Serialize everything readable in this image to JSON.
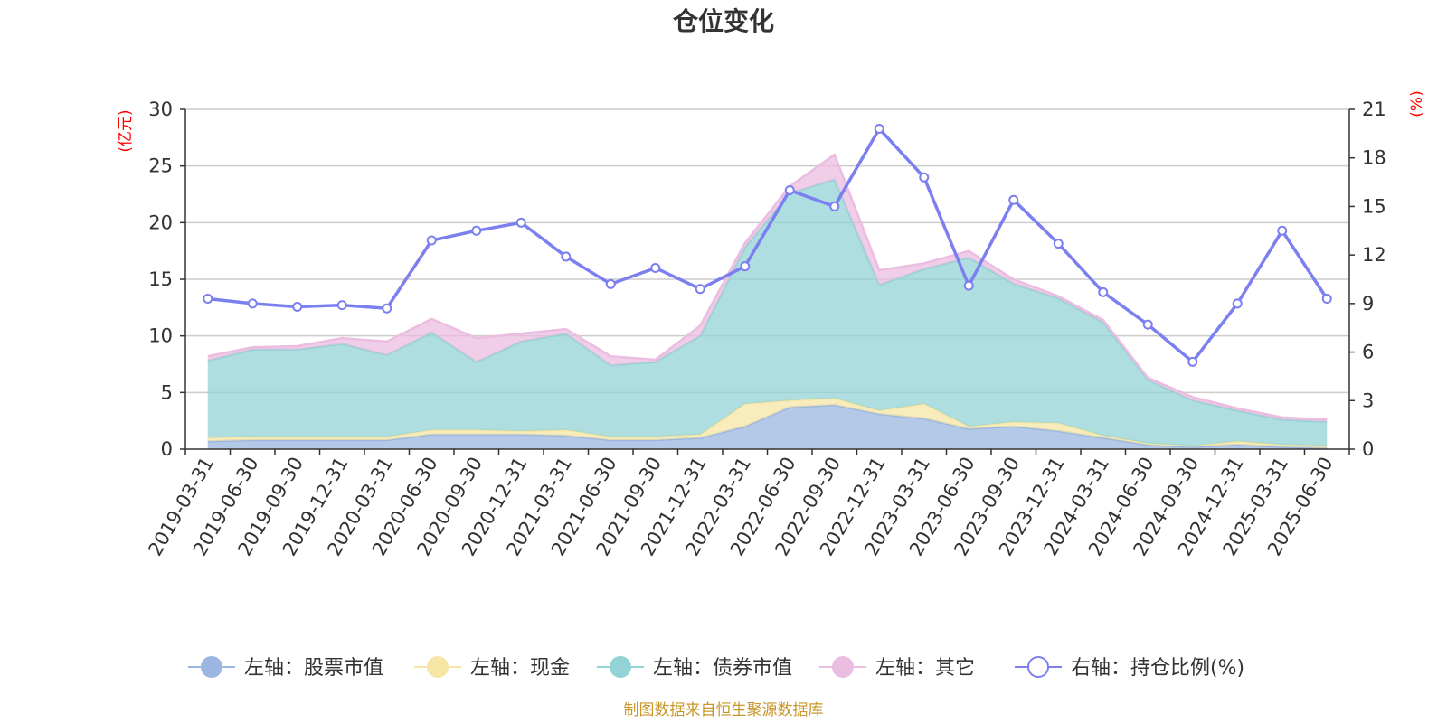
{
  "chart_data": {
    "type": "area",
    "title": "仓位变化",
    "y_left_unit": "(亿元)",
    "y_right_unit": "(%)",
    "x": [
      "2019-03-31",
      "2019-06-30",
      "2019-09-30",
      "2019-12-31",
      "2020-03-31",
      "2020-06-30",
      "2020-09-30",
      "2020-12-31",
      "2021-03-31",
      "2021-06-30",
      "2021-09-30",
      "2021-12-31",
      "2022-03-31",
      "2022-06-30",
      "2022-09-30",
      "2022-12-31",
      "2023-03-31",
      "2023-06-30",
      "2023-09-30",
      "2023-12-31",
      "2024-03-31",
      "2024-06-30",
      "2024-09-30",
      "2024-12-31",
      "2025-03-31",
      "2025-06-30"
    ],
    "y_left_ticks": [
      "0",
      "5",
      "10",
      "15",
      "20",
      "25",
      "30"
    ],
    "y_right_ticks": [
      "0",
      "3",
      "6",
      "9",
      "12",
      "15",
      "18",
      "21"
    ],
    "ylim_left": [
      0,
      30
    ],
    "ylim_right": [
      0,
      21
    ],
    "grid": true,
    "legend_position": "bottom",
    "series": [
      {
        "name": "左轴：股票市值",
        "axis": "left",
        "color": "#9bb6e0",
        "values": [
          0.7,
          0.8,
          0.8,
          0.8,
          0.8,
          1.3,
          1.3,
          1.3,
          1.2,
          0.8,
          0.8,
          1.0,
          2.0,
          3.7,
          3.9,
          3.1,
          2.7,
          1.8,
          2.0,
          1.6,
          1.0,
          0.4,
          0.2,
          0.4,
          0.2,
          0.1
        ]
      },
      {
        "name": "左轴：现金",
        "axis": "left",
        "color": "#f5e6a6",
        "values": [
          0.3,
          0.3,
          0.3,
          0.3,
          0.3,
          0.4,
          0.4,
          0.3,
          0.5,
          0.3,
          0.3,
          0.3,
          2.0,
          0.6,
          0.6,
          0.3,
          1.3,
          0.2,
          0.4,
          0.7,
          0.2,
          0.1,
          0.1,
          0.3,
          0.2,
          0.2
        ]
      },
      {
        "name": "左轴：债券市值",
        "axis": "left",
        "color": "#93d3d6",
        "values": [
          6.8,
          7.7,
          7.7,
          8.2,
          7.2,
          8.6,
          6.0,
          7.9,
          8.5,
          6.3,
          6.6,
          8.7,
          13.8,
          18.3,
          19.3,
          11.1,
          11.9,
          14.9,
          12.2,
          11.0,
          10.0,
          5.6,
          4.0,
          2.7,
          2.2,
          2.1
        ]
      },
      {
        "name": "左轴：其它",
        "axis": "left",
        "color": "#ebbde0",
        "values": [
          0.4,
          0.2,
          0.3,
          0.5,
          1.2,
          1.2,
          2.1,
          0.7,
          0.4,
          0.8,
          0.2,
          0.9,
          0.4,
          0.6,
          2.2,
          1.3,
          0.5,
          0.6,
          0.4,
          0.2,
          0.2,
          0.2,
          0.3,
          0.2,
          0.2,
          0.2
        ]
      },
      {
        "name": "右轴：持仓比例(%)",
        "axis": "right",
        "color": "#7b7ff0",
        "values": [
          9.3,
          9.0,
          8.8,
          8.9,
          8.7,
          12.9,
          13.5,
          14.0,
          11.9,
          10.2,
          11.2,
          9.9,
          11.3,
          16.0,
          15.0,
          19.8,
          16.8,
          10.1,
          15.4,
          12.7,
          9.7,
          7.7,
          5.4,
          9.0,
          13.5,
          9.3
        ]
      }
    ]
  },
  "source_note": "制图数据来自恒生聚源数据库"
}
